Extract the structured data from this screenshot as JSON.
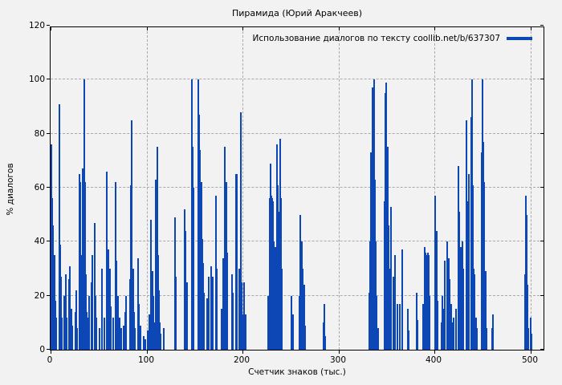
{
  "title": "Пирамида (Юрий Аракчеев)",
  "legend": {
    "label": "Использование диалогов по тексту coollib.net/b/637307"
  },
  "colors": {
    "bar": "#0d47b5",
    "background": "#f2f2f2",
    "grid": "#a9a9a9",
    "axis": "#000000"
  },
  "chart_data": {
    "type": "bar",
    "style": "impulses",
    "title": "Пирамида (Юрий Аракчеев)",
    "series_name": "Использование диалогов по тексту coollib.net/b/637307",
    "xlabel": "Счетчик знаков (тыс.)",
    "ylabel": "% диалогов",
    "xlim": [
      0,
      515
    ],
    "ylim": [
      0,
      120
    ],
    "xticks": [
      0,
      100,
      200,
      300,
      400,
      500
    ],
    "yticks": [
      0,
      20,
      40,
      60,
      80,
      100,
      120
    ],
    "grid": true,
    "legend_position": "top-right",
    "points": [
      [
        0,
        76
      ],
      [
        1,
        56
      ],
      [
        2,
        46
      ],
      [
        3,
        35
      ],
      [
        4,
        18
      ],
      [
        5,
        12
      ],
      [
        8,
        91
      ],
      [
        9,
        39
      ],
      [
        10,
        27
      ],
      [
        11,
        12
      ],
      [
        13,
        20
      ],
      [
        15,
        28
      ],
      [
        16,
        12
      ],
      [
        18,
        26
      ],
      [
        19,
        31
      ],
      [
        21,
        15
      ],
      [
        22,
        9
      ],
      [
        25,
        14
      ],
      [
        26,
        22
      ],
      [
        27,
        8
      ],
      [
        29,
        65
      ],
      [
        30,
        62
      ],
      [
        31,
        35
      ],
      [
        32,
        20
      ],
      [
        33,
        67
      ],
      [
        34,
        100
      ],
      [
        35,
        62
      ],
      [
        36,
        28
      ],
      [
        37,
        14
      ],
      [
        38,
        12
      ],
      [
        39,
        20
      ],
      [
        42,
        25
      ],
      [
        43,
        35
      ],
      [
        45,
        47
      ],
      [
        46,
        20
      ],
      [
        47,
        12
      ],
      [
        50,
        8
      ],
      [
        53,
        30
      ],
      [
        55,
        12
      ],
      [
        58,
        66
      ],
      [
        59,
        37
      ],
      [
        61,
        30
      ],
      [
        62,
        16
      ],
      [
        64,
        12
      ],
      [
        67,
        62
      ],
      [
        68,
        33
      ],
      [
        69,
        20
      ],
      [
        71,
        12
      ],
      [
        73,
        8
      ],
      [
        75,
        9
      ],
      [
        77,
        14
      ],
      [
        78,
        20
      ],
      [
        82,
        26
      ],
      [
        83,
        61
      ],
      [
        84,
        85
      ],
      [
        85,
        30
      ],
      [
        86,
        14
      ],
      [
        87,
        8
      ],
      [
        90,
        34
      ],
      [
        91,
        17
      ],
      [
        93,
        9
      ],
      [
        96,
        5
      ],
      [
        98,
        4
      ],
      [
        100,
        7
      ],
      [
        102,
        13
      ],
      [
        104,
        48
      ],
      [
        105,
        29
      ],
      [
        106,
        20
      ],
      [
        107,
        10
      ],
      [
        109,
        63
      ],
      [
        110,
        75
      ],
      [
        111,
        35
      ],
      [
        112,
        22
      ],
      [
        113,
        10
      ],
      [
        114,
        6
      ],
      [
        117,
        8
      ],
      [
        129,
        49
      ],
      [
        130,
        27
      ],
      [
        139,
        52
      ],
      [
        140,
        44
      ],
      [
        141,
        25
      ],
      [
        146,
        100
      ],
      [
        147,
        75
      ],
      [
        148,
        60
      ],
      [
        153,
        100
      ],
      [
        154,
        87
      ],
      [
        155,
        74
      ],
      [
        156,
        62
      ],
      [
        157,
        41
      ],
      [
        158,
        32
      ],
      [
        159,
        21
      ],
      [
        162,
        19
      ],
      [
        164,
        27
      ],
      [
        166,
        31
      ],
      [
        168,
        27
      ],
      [
        171,
        57
      ],
      [
        172,
        30
      ],
      [
        177,
        15
      ],
      [
        179,
        34
      ],
      [
        181,
        75
      ],
      [
        182,
        62
      ],
      [
        183,
        36
      ],
      [
        188,
        28
      ],
      [
        189,
        21
      ],
      [
        192,
        65
      ],
      [
        193,
        65
      ],
      [
        196,
        30
      ],
      [
        197,
        88
      ],
      [
        198,
        25
      ],
      [
        199,
        13
      ],
      [
        201,
        25
      ],
      [
        202,
        13
      ],
      [
        226,
        20
      ],
      [
        227,
        56
      ],
      [
        228,
        69
      ],
      [
        229,
        57
      ],
      [
        230,
        56
      ],
      [
        231,
        55
      ],
      [
        232,
        40
      ],
      [
        233,
        38
      ],
      [
        235,
        76
      ],
      [
        236,
        61
      ],
      [
        237,
        51
      ],
      [
        238,
        78
      ],
      [
        239,
        56
      ],
      [
        240,
        30
      ],
      [
        250,
        20
      ],
      [
        252,
        13
      ],
      [
        258,
        20
      ],
      [
        259,
        50
      ],
      [
        260,
        33
      ],
      [
        261,
        40
      ],
      [
        262,
        30
      ],
      [
        263,
        24
      ],
      [
        264,
        9
      ],
      [
        283,
        10
      ],
      [
        284,
        17
      ],
      [
        285,
        5
      ],
      [
        331,
        21
      ],
      [
        332,
        40
      ],
      [
        333,
        73
      ],
      [
        334,
        97
      ],
      [
        335,
        73
      ],
      [
        336,
        100
      ],
      [
        337,
        63
      ],
      [
        338,
        40
      ],
      [
        339,
        20
      ],
      [
        340,
        8
      ],
      [
        347,
        55
      ],
      [
        348,
        95
      ],
      [
        349,
        99
      ],
      [
        350,
        75
      ],
      [
        351,
        46
      ],
      [
        352,
        30
      ],
      [
        354,
        53
      ],
      [
        356,
        27
      ],
      [
        358,
        35
      ],
      [
        360,
        17
      ],
      [
        363,
        17
      ],
      [
        365,
        37
      ],
      [
        371,
        15
      ],
      [
        372,
        7
      ],
      [
        380,
        21
      ],
      [
        381,
        11
      ],
      [
        387,
        17
      ],
      [
        389,
        38
      ],
      [
        390,
        36
      ],
      [
        391,
        35
      ],
      [
        392,
        36
      ],
      [
        393,
        35
      ],
      [
        394,
        20
      ],
      [
        400,
        57
      ],
      [
        401,
        44
      ],
      [
        402,
        18
      ],
      [
        406,
        10
      ],
      [
        407,
        20
      ],
      [
        408,
        15
      ],
      [
        410,
        33
      ],
      [
        412,
        40
      ],
      [
        414,
        34
      ],
      [
        415,
        26
      ],
      [
        416,
        17
      ],
      [
        417,
        10
      ],
      [
        419,
        12
      ],
      [
        421,
        15
      ],
      [
        424,
        68
      ],
      [
        425,
        51
      ],
      [
        426,
        38
      ],
      [
        428,
        40
      ],
      [
        429,
        30
      ],
      [
        432,
        85
      ],
      [
        433,
        55
      ],
      [
        434,
        52
      ],
      [
        435,
        65
      ],
      [
        437,
        86
      ],
      [
        438,
        100
      ],
      [
        439,
        61
      ],
      [
        440,
        30
      ],
      [
        441,
        28
      ],
      [
        442,
        12
      ],
      [
        443,
        8
      ],
      [
        448,
        73
      ],
      [
        449,
        100
      ],
      [
        450,
        77
      ],
      [
        451,
        62
      ],
      [
        452,
        29
      ],
      [
        453,
        8
      ],
      [
        459,
        8
      ],
      [
        460,
        13
      ],
      [
        493,
        28
      ],
      [
        494,
        57
      ],
      [
        495,
        50
      ],
      [
        496,
        24
      ],
      [
        497,
        8
      ],
      [
        499,
        12
      ],
      [
        500,
        6
      ]
    ]
  }
}
